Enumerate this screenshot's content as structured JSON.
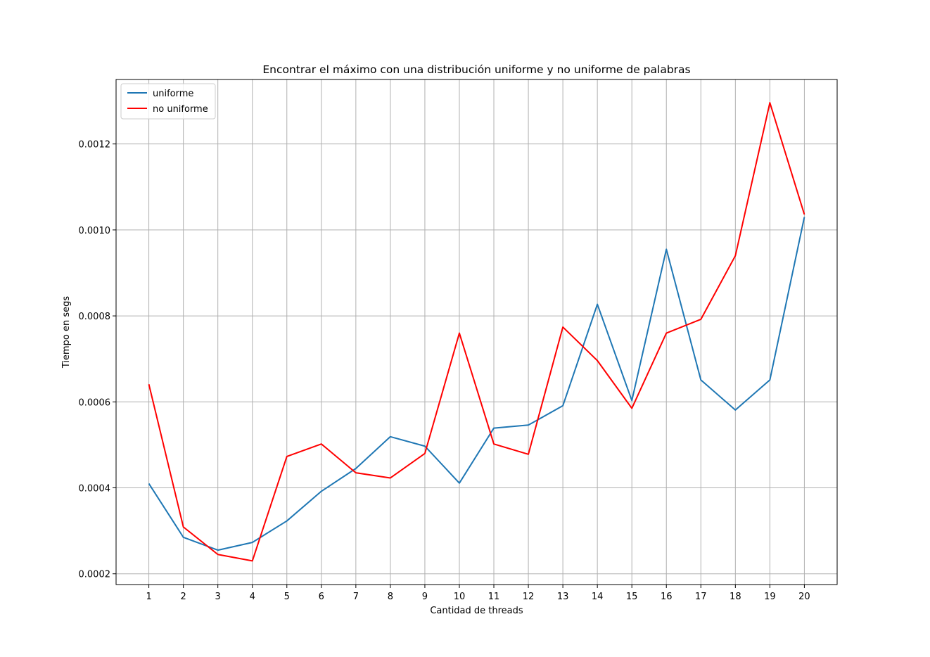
{
  "chart_data": {
    "type": "line",
    "title": "Encontrar el máximo con una distribución uniforme y no uniforme de palabras",
    "xlabel": "Cantidad de threads",
    "ylabel": "Tiempo en segs",
    "x": [
      1,
      2,
      3,
      4,
      5,
      6,
      7,
      8,
      9,
      10,
      11,
      12,
      13,
      14,
      15,
      16,
      17,
      18,
      19,
      20
    ],
    "x_tick_labels": [
      "1",
      "2",
      "3",
      "4",
      "5",
      "6",
      "7",
      "8",
      "9",
      "10",
      "11",
      "12",
      "13",
      "14",
      "15",
      "16",
      "17",
      "18",
      "19",
      "20"
    ],
    "y_ticks": [
      0.0002,
      0.0004,
      0.0006,
      0.0008,
      0.001,
      0.0012
    ],
    "y_tick_labels": [
      "0.0002",
      "0.0004",
      "0.0006",
      "0.0008",
      "0.0010",
      "0.0012"
    ],
    "xlim": [
      0.05,
      20.95
    ],
    "ylim": [
      0.000175,
      0.00135
    ],
    "grid": true,
    "legend_position": "top-left",
    "series": [
      {
        "name": "uniforme",
        "color": "#1f77b4",
        "values": [
          0.00041,
          0.000285,
          0.000255,
          0.000273,
          0.000323,
          0.000392,
          0.000445,
          0.000519,
          0.000497,
          0.000411,
          0.000539,
          0.000546,
          0.000591,
          0.000827,
          0.000603,
          0.000955,
          0.000651,
          0.000581,
          0.000651,
          0.00103
        ]
      },
      {
        "name": "no uniforme",
        "color": "#ff0000",
        "values": [
          0.000641,
          0.000309,
          0.000245,
          0.00023,
          0.000473,
          0.000502,
          0.000435,
          0.000423,
          0.00048,
          0.00076,
          0.000502,
          0.000478,
          0.000774,
          0.000696,
          0.000585,
          0.00076,
          0.000792,
          0.00094,
          0.001296,
          0.001036
        ]
      }
    ]
  }
}
